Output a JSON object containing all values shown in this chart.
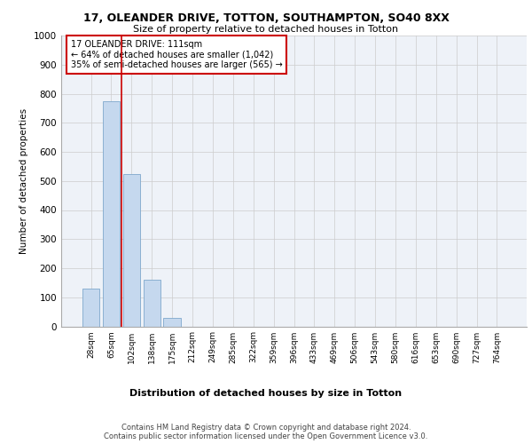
{
  "title1": "17, OLEANDER DRIVE, TOTTON, SOUTHAMPTON, SO40 8XX",
  "title2": "Size of property relative to detached houses in Totton",
  "xlabel": "Distribution of detached houses by size in Totton",
  "ylabel": "Number of detached properties",
  "footnote1": "Contains HM Land Registry data © Crown copyright and database right 2024.",
  "footnote2": "Contains public sector information licensed under the Open Government Licence v3.0.",
  "annotation_line1": "17 OLEANDER DRIVE: 111sqm",
  "annotation_line2": "← 64% of detached houses are smaller (1,042)",
  "annotation_line3": "35% of semi-detached houses are larger (565) →",
  "bar_labels": [
    "28sqm",
    "65sqm",
    "102sqm",
    "138sqm",
    "175sqm",
    "212sqm",
    "249sqm",
    "285sqm",
    "322sqm",
    "359sqm",
    "396sqm",
    "433sqm",
    "469sqm",
    "506sqm",
    "543sqm",
    "580sqm",
    "616sqm",
    "653sqm",
    "690sqm",
    "727sqm",
    "764sqm"
  ],
  "bar_values": [
    130,
    775,
    525,
    160,
    30,
    0,
    0,
    0,
    0,
    0,
    0,
    0,
    0,
    0,
    0,
    0,
    0,
    0,
    0,
    0,
    0
  ],
  "bar_color": "#c5d8ee",
  "bar_edge_color": "#7fa8cc",
  "vline_x": 1.5,
  "vline_color": "#cc0000",
  "ylim": [
    0,
    1000
  ],
  "yticks": [
    0,
    100,
    200,
    300,
    400,
    500,
    600,
    700,
    800,
    900,
    1000
  ],
  "grid_color": "#cccccc",
  "background_color": "#eef2f8",
  "annotation_box_color": "white",
  "annotation_box_edge": "#cc0000"
}
